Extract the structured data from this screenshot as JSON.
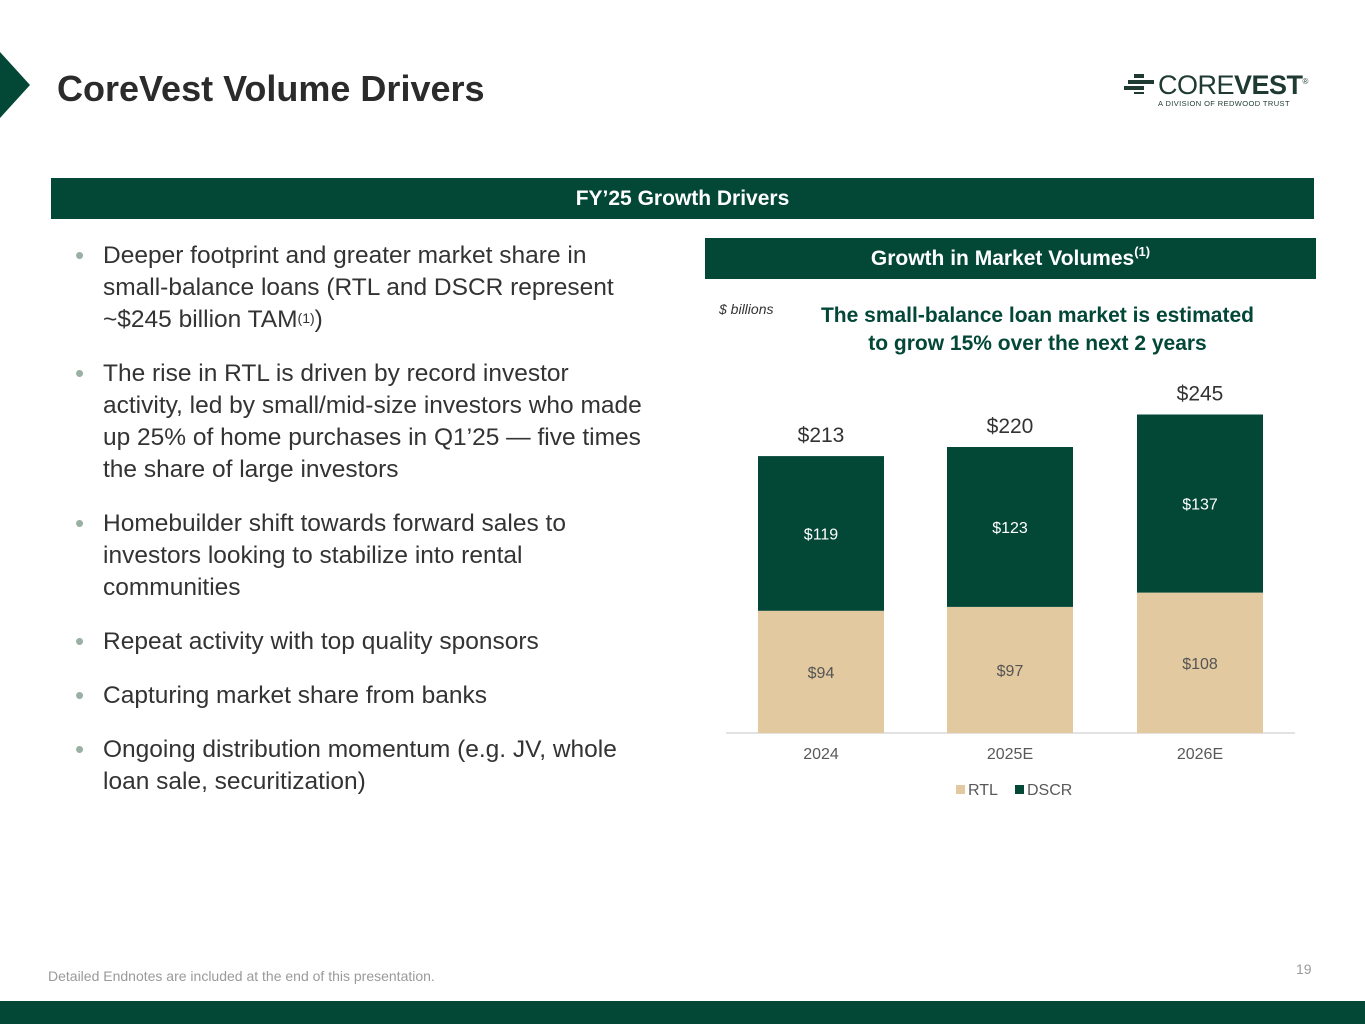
{
  "header": {
    "title": "CoreVest Volume Drivers",
    "logo_word_light": "CORE",
    "logo_word_bold": "VEST",
    "logo_trademark": "®",
    "logo_sub": "A DIVISION OF REDWOOD TRUST"
  },
  "banner": {
    "label": "FY’25 Growth Drivers"
  },
  "bullets": [
    {
      "text": "Deeper footprint and greater market share in small-balance loans (RTL and DSCR represent ~$245 billion TAM",
      "ref": "(1)",
      "tail": ")"
    },
    {
      "text": "The rise in RTL is driven by record investor activity, led by small/mid-size investors who made up 25% of home purchases in Q1’25 — five times the share of large investors"
    },
    {
      "text": "Homebuilder shift towards forward sales to investors looking to stabilize into rental communities"
    },
    {
      "text": "Repeat activity with top quality sponsors"
    },
    {
      "text": "Capturing market share from banks"
    },
    {
      "text": "Ongoing distribution momentum (e.g. JV, whole loan sale, securitization)"
    }
  ],
  "chart_panel": {
    "header": "Growth in Market Volumes",
    "header_ref": "(1)",
    "units": "$ billions",
    "subtitle_line1": "The small-balance loan market is estimated",
    "subtitle_line2": "to grow 15% over the next 2 years"
  },
  "chart_data": {
    "type": "bar",
    "stacked": true,
    "categories": [
      "2024",
      "2025E",
      "2026E"
    ],
    "series": [
      {
        "name": "RTL",
        "values": [
          94,
          97,
          108
        ],
        "labels": [
          "$94",
          "$97",
          "$108"
        ],
        "color": "#e2c99f"
      },
      {
        "name": "DSCR",
        "values": [
          119,
          123,
          137
        ],
        "labels": [
          "$119",
          "$123",
          "$137"
        ],
        "color": "#034737"
      }
    ],
    "totals": [
      213,
      220,
      245
    ],
    "total_labels": [
      "$213",
      "$220",
      "$245"
    ],
    "ylim": [
      0,
      245
    ],
    "legend": "bottom-center",
    "grid": false
  },
  "footer": {
    "note": "Detailed Endnotes are included at the end of this presentation.",
    "page": "19"
  },
  "colors": {
    "brand": "#034737",
    "accent": "#e2c99f",
    "bullet": "#9ab0a3"
  }
}
